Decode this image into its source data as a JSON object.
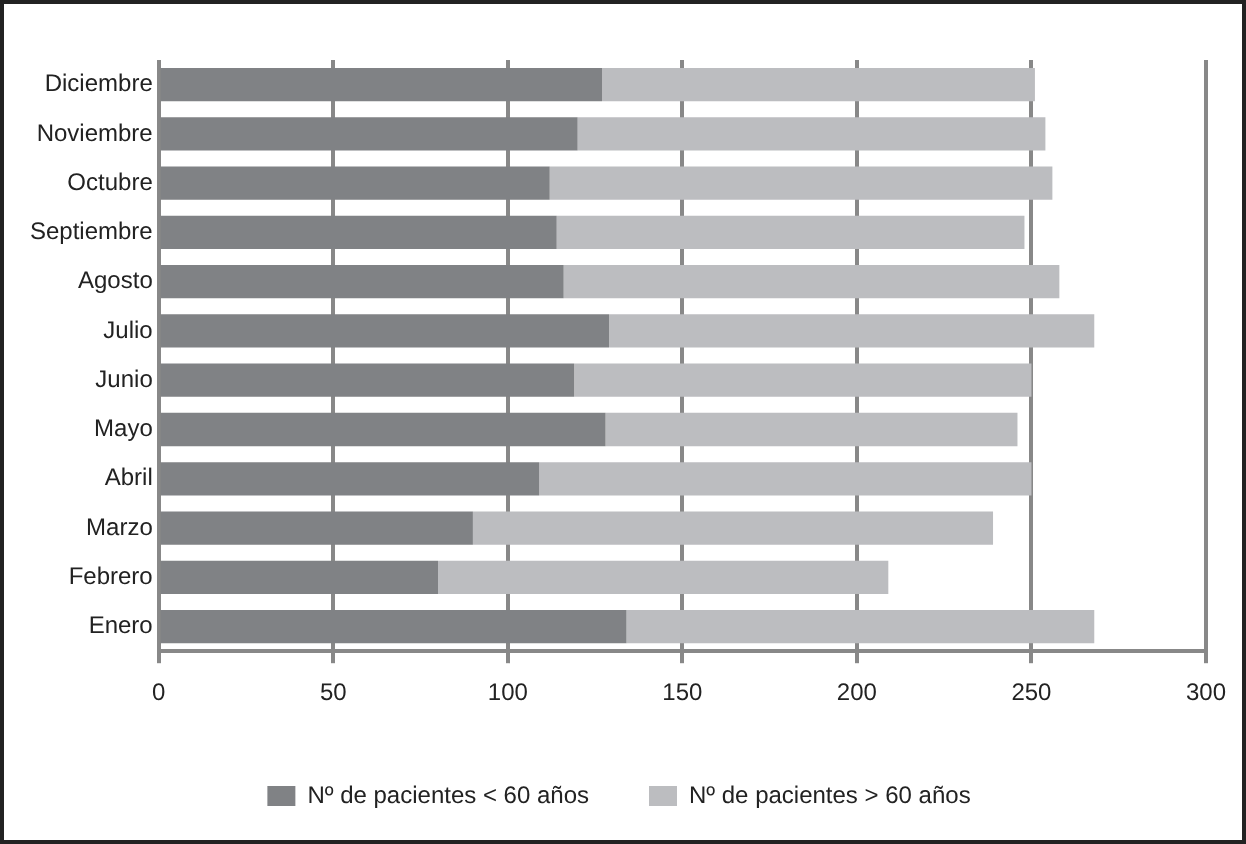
{
  "chart_data": {
    "type": "bar",
    "orientation": "horizontal",
    "stacked": true,
    "categories": [
      "Diciembre",
      "Noviembre",
      "Octubre",
      "Septiembre",
      "Agosto",
      "Julio",
      "Junio",
      "Mayo",
      "Abril",
      "Marzo",
      "Febrero",
      "Enero"
    ],
    "series": [
      {
        "name": "Nº de pacientes < 60 años",
        "color": "#808285",
        "values": [
          127,
          120,
          112,
          114,
          116,
          129,
          119,
          128,
          109,
          90,
          80,
          134
        ]
      },
      {
        "name": "Nº de pacientes > 60 años",
        "color": "#bcbdc0",
        "values": [
          124,
          134,
          144,
          134,
          142,
          139,
          131,
          118,
          141,
          149,
          129,
          134
        ]
      }
    ],
    "xlim": [
      0,
      300
    ],
    "xticks": [
      0,
      50,
      100,
      150,
      200,
      250,
      300
    ],
    "grid": "x",
    "legend": "bottom"
  }
}
